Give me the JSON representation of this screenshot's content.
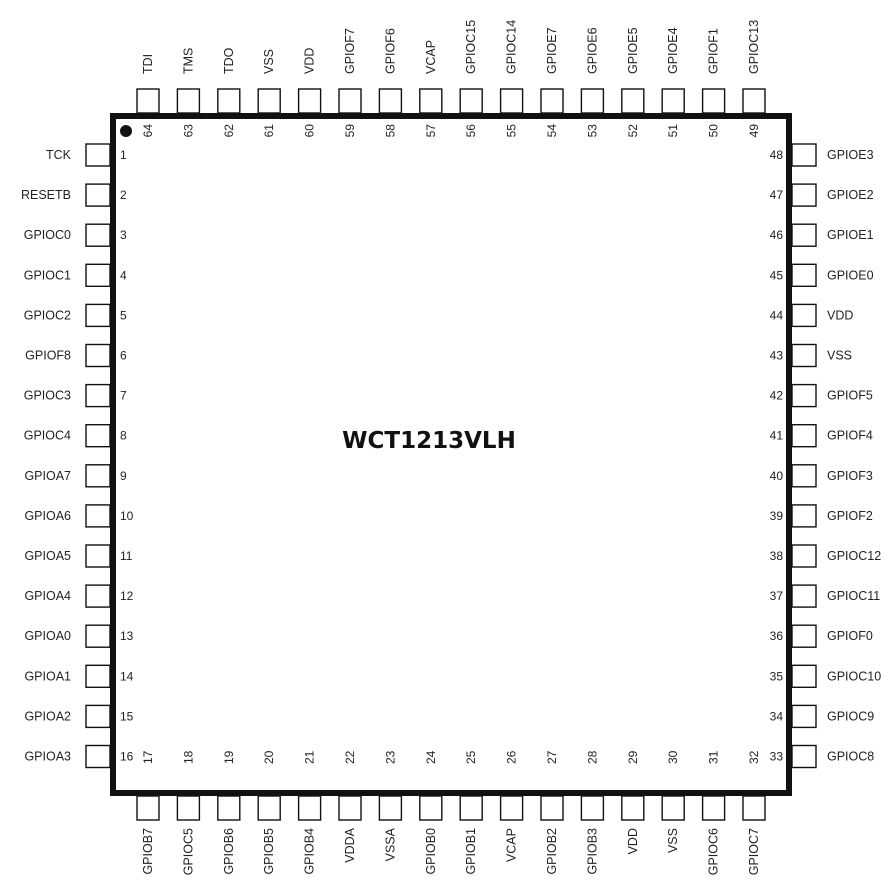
{
  "part_name": "WCT1213VLH",
  "pins": {
    "left": [
      {
        "num": "1",
        "name": "TCK"
      },
      {
        "num": "2",
        "name": "RESETB"
      },
      {
        "num": "3",
        "name": "GPIOC0"
      },
      {
        "num": "4",
        "name": "GPIOC1"
      },
      {
        "num": "5",
        "name": "GPIOC2"
      },
      {
        "num": "6",
        "name": "GPIOF8"
      },
      {
        "num": "7",
        "name": "GPIOC3"
      },
      {
        "num": "8",
        "name": "GPIOC4"
      },
      {
        "num": "9",
        "name": "GPIOA7"
      },
      {
        "num": "10",
        "name": "GPIOA6"
      },
      {
        "num": "11",
        "name": "GPIOA5"
      },
      {
        "num": "12",
        "name": "GPIOA4"
      },
      {
        "num": "13",
        "name": "GPIOA0"
      },
      {
        "num": "14",
        "name": "GPIOA1"
      },
      {
        "num": "15",
        "name": "GPIOA2"
      },
      {
        "num": "16",
        "name": "GPIOA3"
      }
    ],
    "bottom": [
      {
        "num": "17",
        "name": "GPIOB7"
      },
      {
        "num": "18",
        "name": "GPIOC5"
      },
      {
        "num": "19",
        "name": "GPIOB6"
      },
      {
        "num": "20",
        "name": "GPIOB5"
      },
      {
        "num": "21",
        "name": "GPIOB4"
      },
      {
        "num": "22",
        "name": "VDDA"
      },
      {
        "num": "23",
        "name": "VSSA"
      },
      {
        "num": "24",
        "name": "GPIOB0"
      },
      {
        "num": "25",
        "name": "GPIOB1"
      },
      {
        "num": "26",
        "name": "VCAP"
      },
      {
        "num": "27",
        "name": "GPIOB2"
      },
      {
        "num": "28",
        "name": "GPIOB3"
      },
      {
        "num": "29",
        "name": "VDD"
      },
      {
        "num": "30",
        "name": "VSS"
      },
      {
        "num": "31",
        "name": "GPIOC6"
      },
      {
        "num": "32",
        "name": "GPIOC7"
      }
    ],
    "right": [
      {
        "num": "48",
        "name": "GPIOE3"
      },
      {
        "num": "47",
        "name": "GPIOE2"
      },
      {
        "num": "46",
        "name": "GPIOE1"
      },
      {
        "num": "45",
        "name": "GPIOE0"
      },
      {
        "num": "44",
        "name": "VDD"
      },
      {
        "num": "43",
        "name": "VSS"
      },
      {
        "num": "42",
        "name": "GPIOF5"
      },
      {
        "num": "41",
        "name": "GPIOF4"
      },
      {
        "num": "40",
        "name": "GPIOF3"
      },
      {
        "num": "39",
        "name": "GPIOF2"
      },
      {
        "num": "38",
        "name": "GPIOC12"
      },
      {
        "num": "37",
        "name": "GPIOC11"
      },
      {
        "num": "36",
        "name": "GPIOF0"
      },
      {
        "num": "35",
        "name": "GPIOC10"
      },
      {
        "num": "34",
        "name": "GPIOC9"
      },
      {
        "num": "33",
        "name": "GPIOC8"
      }
    ],
    "top": [
      {
        "num": "64",
        "name": "TDI"
      },
      {
        "num": "63",
        "name": "TMS"
      },
      {
        "num": "62",
        "name": "TDO"
      },
      {
        "num": "61",
        "name": "VSS"
      },
      {
        "num": "60",
        "name": "VDD"
      },
      {
        "num": "59",
        "name": "GPIOF7"
      },
      {
        "num": "58",
        "name": "GPIOF6"
      },
      {
        "num": "57",
        "name": "VCAP"
      },
      {
        "num": "56",
        "name": "GPIOC15"
      },
      {
        "num": "55",
        "name": "GPIOC14"
      },
      {
        "num": "54",
        "name": "GPIOE7"
      },
      {
        "num": "53",
        "name": "GPIOE6"
      },
      {
        "num": "52",
        "name": "GPIOE5"
      },
      {
        "num": "51",
        "name": "GPIOE4"
      },
      {
        "num": "50",
        "name": "GPIOF1"
      },
      {
        "num": "49",
        "name": "GPIOC13"
      }
    ]
  }
}
